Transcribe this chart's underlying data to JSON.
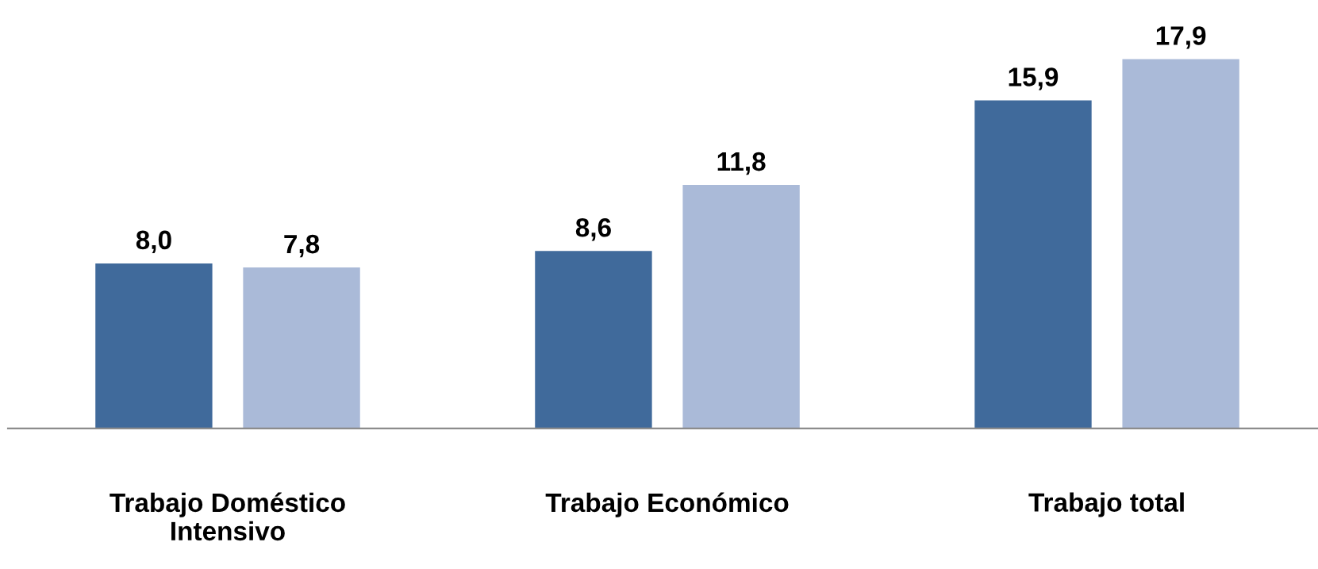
{
  "chart_data": {
    "type": "bar",
    "categories": [
      "Trabajo Doméstico\nIntensivo",
      "Trabajo Económico",
      "Trabajo total"
    ],
    "series": [
      {
        "color": "#406a9b",
        "values": [
          8.0,
          8.6,
          15.9
        ],
        "value_labels": [
          "8,0",
          "8,6",
          "15,9"
        ]
      },
      {
        "color": "#aabad8",
        "values": [
          7.8,
          11.8,
          17.9
        ],
        "value_labels": [
          "7,8",
          "11,8",
          "17,9"
        ]
      }
    ],
    "grid": false
  }
}
